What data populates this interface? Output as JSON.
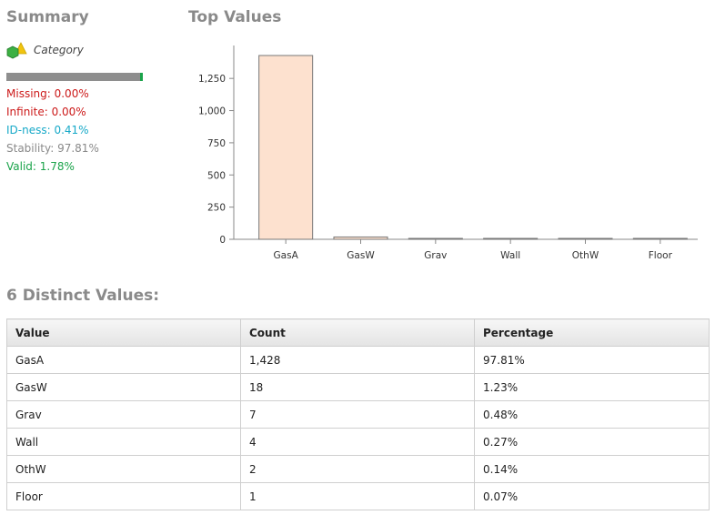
{
  "summary": {
    "title": "Summary",
    "type_label": "Category",
    "quality_bar": {
      "missing": 0.0,
      "invalid": 0.0,
      "valid": 0.0178
    },
    "stats": [
      {
        "text": "Missing: 0.00%",
        "color": "#cc1a1a"
      },
      {
        "text": "Infinite: 0.00%",
        "color": "#cc1a1a"
      },
      {
        "text": "ID-ness: 0.41%",
        "color": "#17a9c8"
      },
      {
        "text": "Stability: 97.81%",
        "color": "#8a8a8a"
      },
      {
        "text": "Valid: 1.78%",
        "color": "#1aa34a"
      }
    ],
    "colors": {
      "bar_gray": "#8e8e8e",
      "valid": "#1aa34a",
      "idness": "#17a9c8"
    }
  },
  "top_values": {
    "title": "Top Values",
    "chart_data": {
      "type": "bar",
      "categories": [
        "GasA",
        "GasW",
        "Grav",
        "Wall",
        "OthW",
        "Floor"
      ],
      "values": [
        1428,
        18,
        7,
        4,
        2,
        1
      ],
      "ylim": [
        0,
        1428
      ],
      "yticks": [
        0,
        250,
        500,
        750,
        1000,
        1250
      ],
      "ytick_labels": [
        "0",
        "250",
        "500",
        "750",
        "1,000",
        "1,250"
      ],
      "grid": false,
      "bar_fill": "#fde1cf",
      "bar_stroke": "#777777"
    }
  },
  "distinct": {
    "title": "6 Distinct Values:",
    "headers": [
      "Value",
      "Count",
      "Percentage"
    ],
    "rows": [
      [
        "GasA",
        "1,428",
        "97.81%"
      ],
      [
        "GasW",
        "18",
        "1.23%"
      ],
      [
        "Grav",
        "7",
        "0.48%"
      ],
      [
        "Wall",
        "4",
        "0.27%"
      ],
      [
        "OthW",
        "2",
        "0.14%"
      ],
      [
        "Floor",
        "1",
        "0.07%"
      ]
    ]
  }
}
